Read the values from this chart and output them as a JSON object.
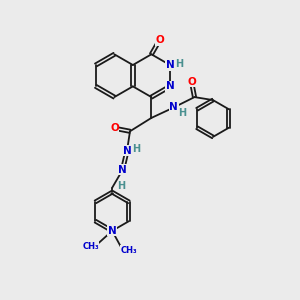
{
  "bg_color": "#ebebeb",
  "bond_color": "#1a1a1a",
  "atom_colors": {
    "O": "#ff0000",
    "N": "#0000cc",
    "H": "#4a9090",
    "C": "#1a1a1a"
  }
}
